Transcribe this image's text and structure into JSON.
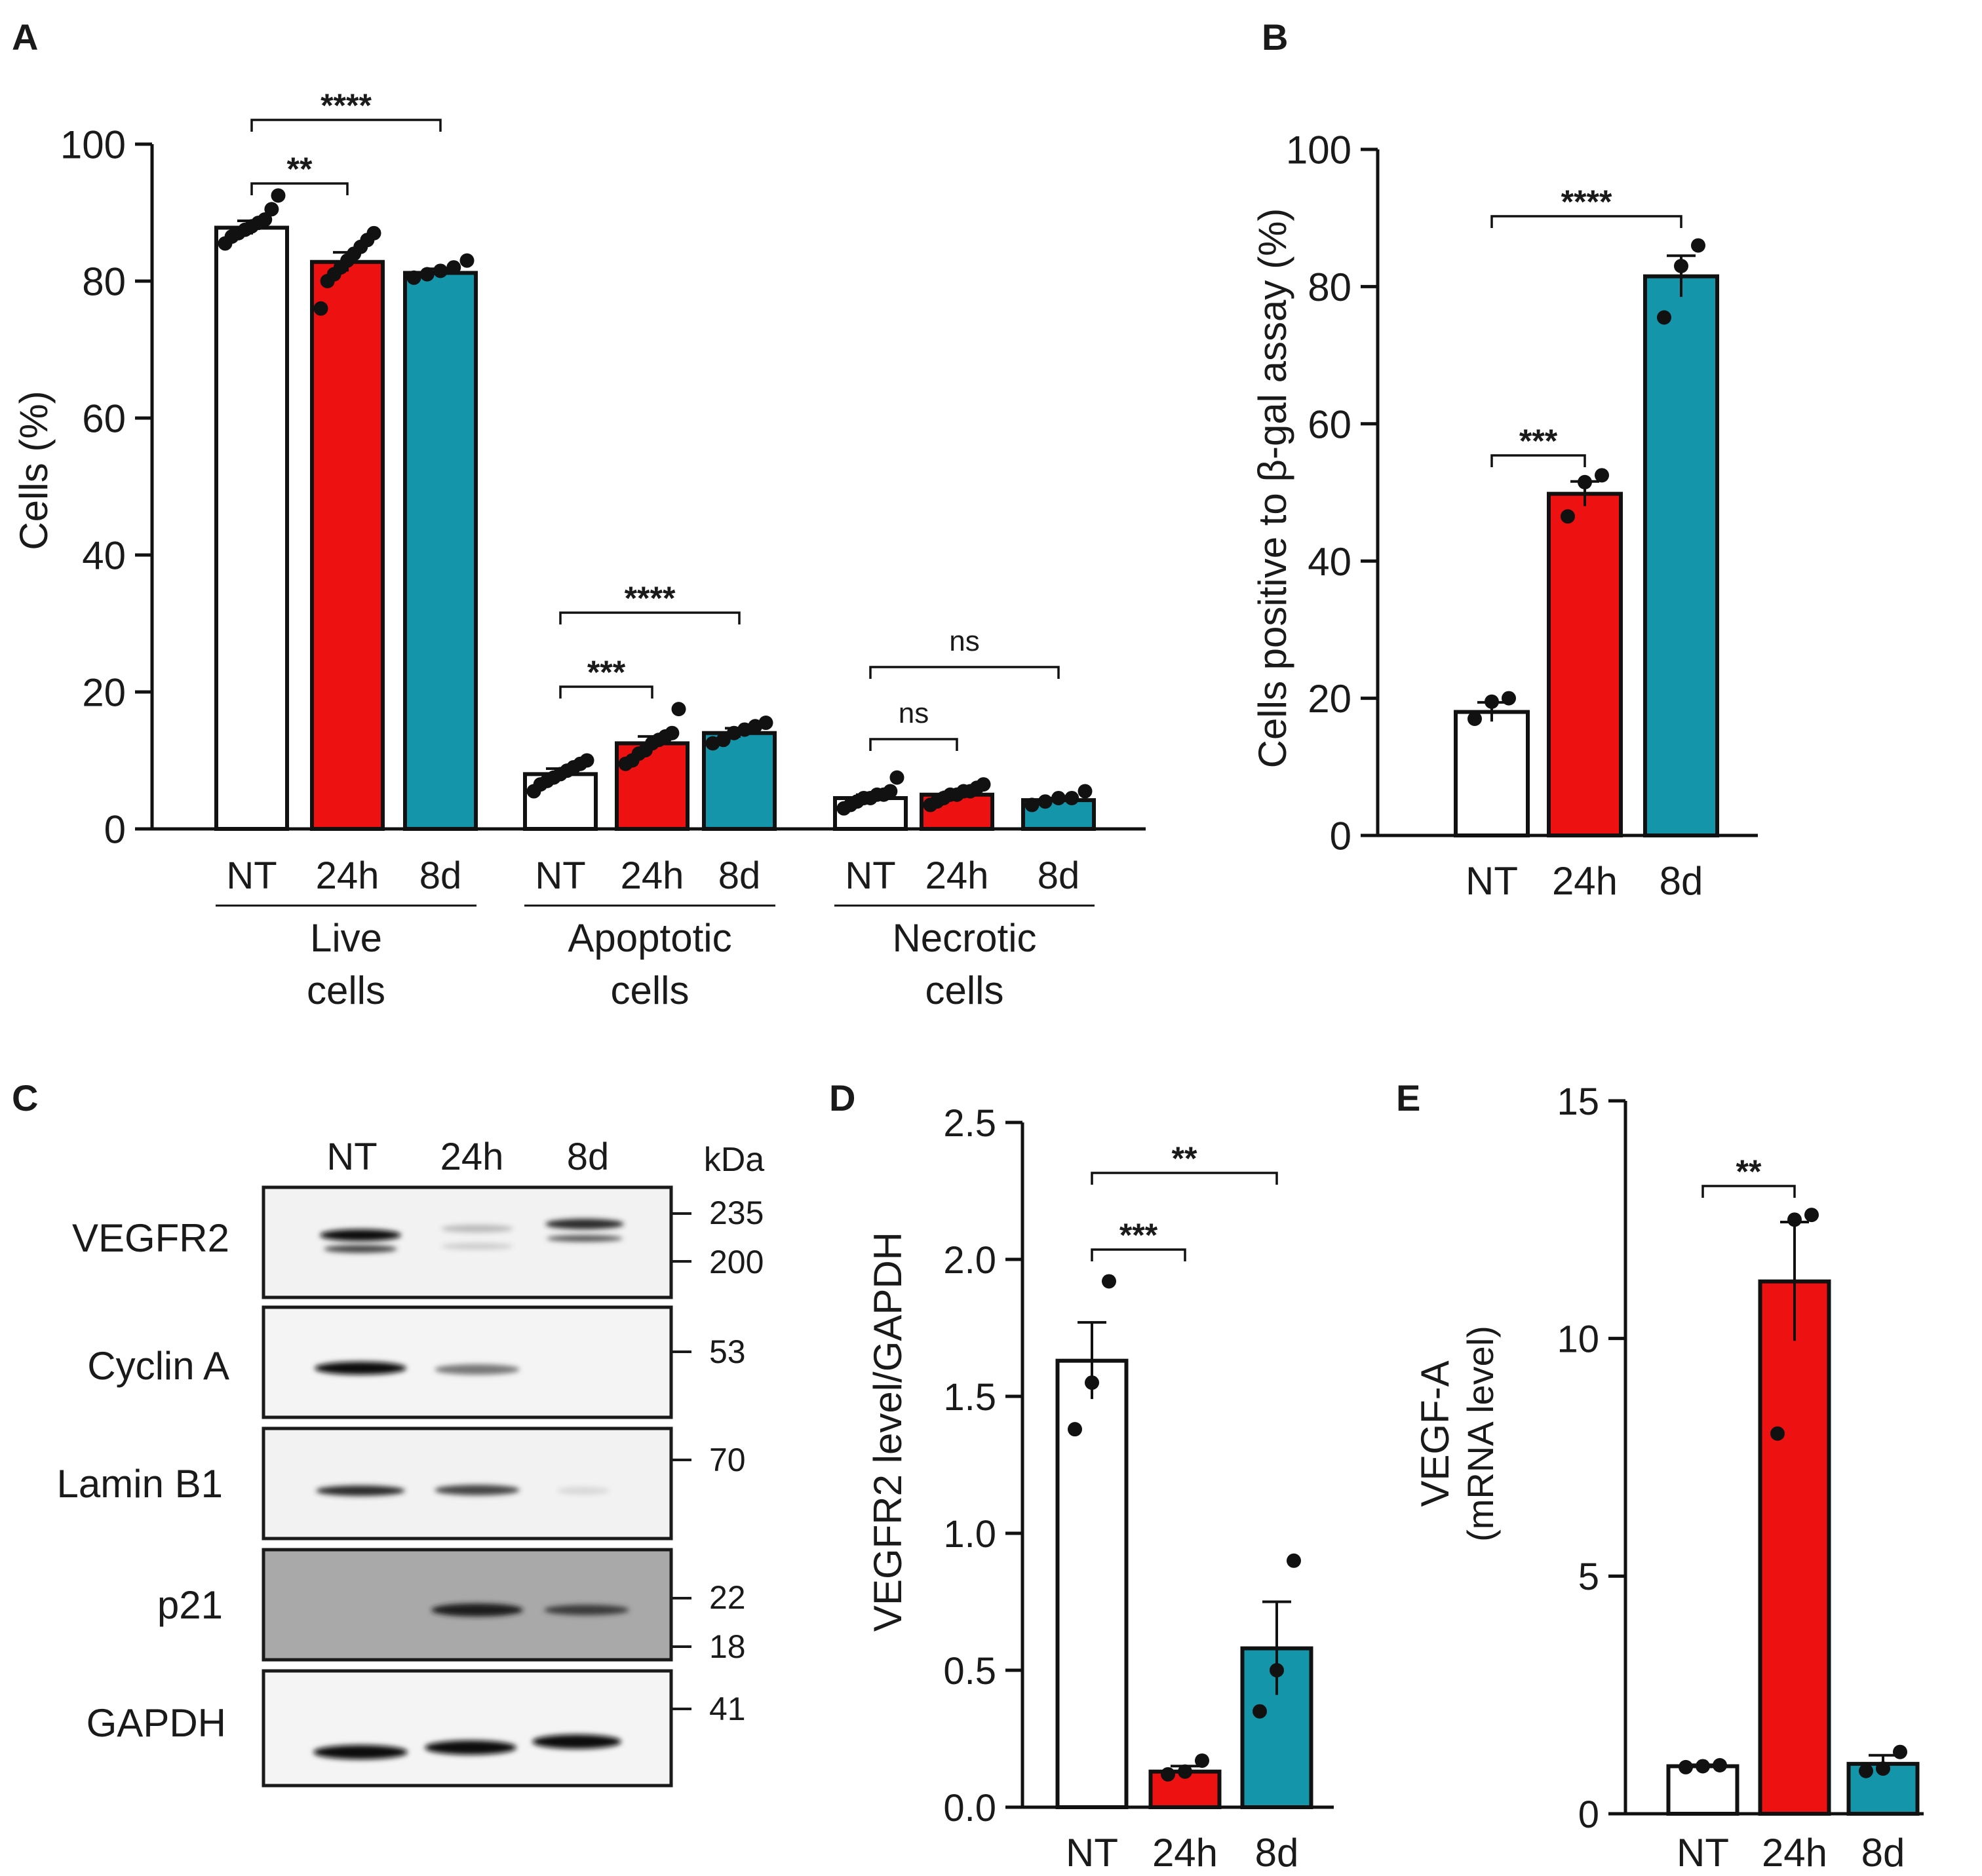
{
  "colors": {
    "nt": "#ffffff",
    "h24": "#ee1111",
    "d8": "#1495aa",
    "ink": "#111111"
  },
  "chart_data": [
    {
      "panel": "A",
      "type": "bar",
      "ylabel": "Cells (%)",
      "ylim": [
        0,
        100
      ],
      "yticks": [
        0,
        20,
        40,
        60,
        80,
        100
      ],
      "bar_labels": [
        "NT",
        "24h",
        "8d"
      ],
      "groups": [
        {
          "label": "Live\ncells",
          "means": [
            87.8,
            82.8,
            81.2
          ],
          "errors": [
            1.0,
            1.4,
            0.6
          ],
          "points": [
            [
              85.5,
              86.5,
              87.0,
              87.5,
              88.0,
              88.5,
              89.0,
              90.5,
              92.5
            ],
            [
              76.0,
              80.0,
              81.0,
              82.0,
              83.0,
              84.0,
              85.0,
              86.0,
              87.0
            ],
            [
              80.5,
              81.0,
              81.5,
              82.0,
              83.0
            ]
          ]
        },
        {
          "label": "Apoptotic\ncells",
          "means": [
            8.0,
            12.5,
            14.0
          ],
          "errors": [
            0.8,
            1.0,
            0.7
          ],
          "points": [
            [
              5.5,
              6.5,
              7.0,
              7.5,
              8.0,
              8.5,
              9.0,
              9.5,
              10.0
            ],
            [
              9.5,
              10.0,
              11.0,
              11.5,
              12.5,
              13.0,
              13.5,
              14.0,
              17.5
            ],
            [
              12.5,
              13.0,
              14.0,
              14.5,
              15.0,
              15.5
            ]
          ]
        },
        {
          "label": "Necrotic\ncells",
          "means": [
            4.5,
            5.0,
            4.2
          ],
          "errors": [
            0.5,
            0.4,
            0.3
          ],
          "points": [
            [
              3.0,
              3.5,
              4.0,
              4.5,
              4.5,
              5.0,
              5.0,
              5.5,
              7.5
            ],
            [
              3.5,
              4.0,
              4.5,
              5.0,
              5.0,
              5.5,
              5.5,
              6.0,
              6.5
            ],
            [
              3.5,
              4.0,
              4.5,
              4.5,
              5.5
            ]
          ]
        }
      ],
      "annotations": [
        {
          "group": 0,
          "from": 0,
          "to": 1,
          "label": "**"
        },
        {
          "group": 0,
          "from": 0,
          "to": 2,
          "label": "****"
        },
        {
          "group": 1,
          "from": 0,
          "to": 1,
          "label": "***"
        },
        {
          "group": 1,
          "from": 0,
          "to": 2,
          "label": "****"
        },
        {
          "group": 2,
          "from": 0,
          "to": 1,
          "label": "ns"
        },
        {
          "group": 2,
          "from": 0,
          "to": 2,
          "label": "ns"
        }
      ]
    },
    {
      "panel": "B",
      "type": "bar",
      "ylabel": "Cells positive to β-gal assay (%)",
      "ylim": [
        0,
        100
      ],
      "yticks": [
        0,
        20,
        40,
        60,
        80,
        100
      ],
      "categories": [
        "NT",
        "24h",
        "8d"
      ],
      "means": [
        18.0,
        49.8,
        81.5
      ],
      "errors": [
        1.4,
        1.8,
        3.0
      ],
      "points": [
        [
          17.0,
          19.5,
          20.0
        ],
        [
          46.5,
          51.5,
          52.5
        ],
        [
          75.5,
          83.0,
          86.0
        ]
      ],
      "annotations": [
        {
          "from": 0,
          "to": 1,
          "label": "***"
        },
        {
          "from": 0,
          "to": 2,
          "label": "****"
        }
      ]
    },
    {
      "panel": "D",
      "type": "bar",
      "ylabel": "VEGFR2 level/GAPDH",
      "ylim": [
        0,
        2.5
      ],
      "yticks": [
        "0.0",
        "0.5",
        "1.0",
        "1.5",
        "2.0",
        "2.5"
      ],
      "categories": [
        "NT",
        "24h",
        "8d"
      ],
      "means": [
        1.63,
        0.13,
        0.58
      ],
      "errors": [
        0.14,
        0.02,
        0.17
      ],
      "points": [
        [
          1.38,
          1.55,
          1.92
        ],
        [
          0.12,
          0.13,
          0.17
        ],
        [
          0.35,
          0.5,
          0.9
        ]
      ],
      "annotations": [
        {
          "from": 0,
          "to": 1,
          "label": "***"
        },
        {
          "from": 0,
          "to": 2,
          "label": "**"
        }
      ]
    },
    {
      "panel": "E",
      "type": "bar",
      "ylabel_line1": "VEGF-A",
      "ylabel_line2": "(mRNA level)",
      "ylim": [
        0,
        15
      ],
      "yticks": [
        0,
        5,
        10,
        15
      ],
      "categories": [
        "NT",
        "24h",
        "8d"
      ],
      "means": [
        1.0,
        11.2,
        1.05
      ],
      "errors": [
        0.03,
        1.25,
        0.18
      ],
      "points": [
        [
          0.98,
          1.0,
          1.02
        ],
        [
          8.0,
          12.5,
          12.6
        ],
        [
          0.9,
          0.95,
          1.3
        ]
      ],
      "annotations": [
        {
          "from": 0,
          "to": 1,
          "label": "**"
        }
      ]
    }
  ],
  "blot": {
    "panel": "C",
    "lanes": [
      "NT",
      "24h",
      "8d"
    ],
    "kda_header": "kDa",
    "rows": [
      {
        "label": "VEGFR2",
        "markers": [
          "235",
          "200"
        ]
      },
      {
        "label": "Cyclin A",
        "markers": [
          "53"
        ]
      },
      {
        "label": "Lamin B1",
        "markers": [
          "70"
        ]
      },
      {
        "label": "p21",
        "markers": [
          "22",
          "18"
        ]
      },
      {
        "label": "GAPDH",
        "markers": [
          "41"
        ]
      }
    ]
  },
  "panel_letters": [
    "A",
    "B",
    "C",
    "D",
    "E"
  ]
}
